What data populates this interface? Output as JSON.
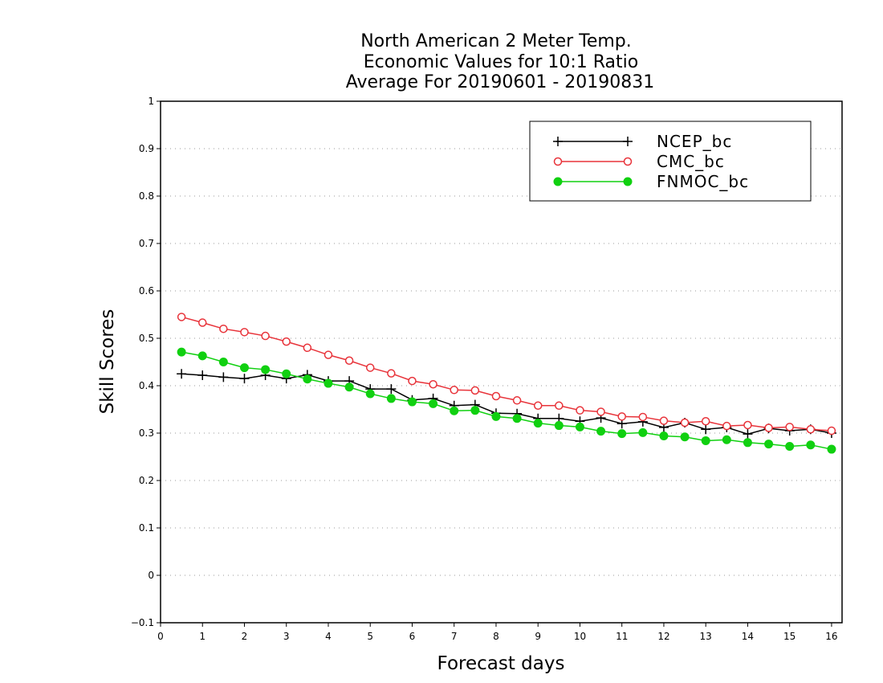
{
  "chart_data": {
    "type": "line",
    "title_lines": [
      "North American 2 Meter Temp.",
      "Economic Values for 10:1 Ratio",
      "Average For 20190601 - 20190831"
    ],
    "xlabel": "Forecast days",
    "ylabel": "Skill Scores",
    "xlim": [
      0,
      16.25
    ],
    "ylim": [
      -0.1,
      1
    ],
    "x_ticks": [
      0,
      1,
      2,
      3,
      4,
      5,
      6,
      7,
      8,
      9,
      10,
      11,
      12,
      13,
      14,
      15,
      16
    ],
    "y_ticks": [
      -0.1,
      0,
      0.1,
      0.2,
      0.3,
      0.4,
      0.5,
      0.6,
      0.7,
      0.8,
      0.9,
      1
    ],
    "y_tick_labels": [
      "−0.1",
      "0",
      "0.1",
      "0.2",
      "0.3",
      "0.4",
      "0.5",
      "0.6",
      "0.7",
      "0.8",
      "0.9",
      "1"
    ],
    "grid": "horizontal dotted",
    "legend_position": "top-right",
    "x": [
      0.5,
      1,
      1.5,
      2,
      2.5,
      3,
      3.5,
      4,
      4.5,
      5,
      5.5,
      6,
      6.5,
      7,
      7.5,
      8,
      8.5,
      9,
      9.5,
      10,
      10.5,
      11,
      11.5,
      12,
      12.5,
      13,
      13.5,
      14,
      14.5,
      15,
      15.5,
      16
    ],
    "series": [
      {
        "name": "NCEP_bc",
        "color": "#000000",
        "marker": "plus",
        "values": [
          0.425,
          0.422,
          0.418,
          0.415,
          0.422,
          0.415,
          0.423,
          0.41,
          0.41,
          0.393,
          0.393,
          0.37,
          0.373,
          0.358,
          0.36,
          0.342,
          0.341,
          0.331,
          0.331,
          0.325,
          0.332,
          0.32,
          0.324,
          0.312,
          0.322,
          0.308,
          0.312,
          0.298,
          0.31,
          0.305,
          0.308,
          0.3
        ]
      },
      {
        "name": "CMC_bc",
        "color": "#e8333a",
        "marker": "open-circle",
        "values": [
          0.545,
          0.533,
          0.52,
          0.513,
          0.505,
          0.493,
          0.48,
          0.465,
          0.453,
          0.438,
          0.426,
          0.41,
          0.403,
          0.391,
          0.39,
          0.378,
          0.369,
          0.358,
          0.358,
          0.348,
          0.345,
          0.335,
          0.334,
          0.326,
          0.322,
          0.325,
          0.315,
          0.317,
          0.311,
          0.313,
          0.308,
          0.305
        ]
      },
      {
        "name": "FNMOC_bc",
        "color": "#10d010",
        "marker": "filled-circle",
        "values": [
          0.471,
          0.463,
          0.45,
          0.438,
          0.434,
          0.425,
          0.414,
          0.405,
          0.397,
          0.383,
          0.373,
          0.366,
          0.362,
          0.347,
          0.348,
          0.335,
          0.331,
          0.321,
          0.316,
          0.313,
          0.304,
          0.299,
          0.301,
          0.294,
          0.292,
          0.284,
          0.286,
          0.28,
          0.277,
          0.272,
          0.275,
          0.266
        ]
      }
    ]
  }
}
